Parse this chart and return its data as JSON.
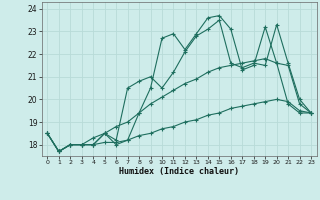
{
  "xlabel": "Humidex (Indice chaleur)",
  "bg_color": "#ceecea",
  "line_color": "#1e6e5e",
  "grid_color": "#b8dbd8",
  "xlim": [
    -0.5,
    23.5
  ],
  "ylim": [
    17.5,
    24.3
  ],
  "yticks": [
    18,
    19,
    20,
    21,
    22,
    23,
    24
  ],
  "xticks": [
    0,
    1,
    2,
    3,
    4,
    5,
    6,
    7,
    8,
    9,
    10,
    11,
    12,
    13,
    14,
    15,
    16,
    17,
    18,
    19,
    20,
    21,
    22,
    23
  ],
  "series": [
    {
      "x": [
        0,
        1,
        2,
        3,
        4,
        5,
        6,
        7,
        8,
        9,
        10,
        11,
        12,
        13,
        14,
        15,
        16,
        17,
        18,
        19,
        20,
        21,
        22,
        23
      ],
      "y": [
        18.5,
        17.7,
        18.0,
        18.0,
        18.0,
        18.5,
        18.0,
        18.2,
        19.4,
        20.5,
        22.7,
        22.9,
        22.2,
        22.9,
        23.6,
        23.7,
        23.1,
        21.3,
        21.5,
        23.2,
        21.6,
        19.8,
        19.4,
        19.4
      ]
    },
    {
      "x": [
        0,
        1,
        2,
        3,
        4,
        5,
        6,
        7,
        8,
        9,
        10,
        11,
        12,
        13,
        14,
        15,
        16,
        17,
        18,
        19,
        20,
        21,
        22,
        23
      ],
      "y": [
        18.5,
        17.7,
        18.0,
        18.0,
        18.0,
        18.5,
        18.2,
        20.5,
        20.8,
        21.0,
        20.5,
        21.2,
        22.1,
        22.8,
        23.1,
        23.5,
        21.6,
        21.4,
        21.6,
        21.5,
        23.3,
        21.6,
        20.0,
        19.4
      ]
    },
    {
      "x": [
        0,
        1,
        2,
        3,
        4,
        5,
        6,
        7,
        8,
        9,
        10,
        11,
        12,
        13,
        14,
        15,
        16,
        17,
        18,
        19,
        20,
        21,
        22,
        23
      ],
      "y": [
        18.5,
        17.7,
        18.0,
        18.0,
        18.3,
        18.5,
        18.8,
        19.0,
        19.4,
        19.8,
        20.1,
        20.4,
        20.7,
        20.9,
        21.2,
        21.4,
        21.5,
        21.6,
        21.7,
        21.8,
        21.6,
        21.5,
        19.8,
        19.4
      ]
    },
    {
      "x": [
        0,
        1,
        2,
        3,
        4,
        5,
        6,
        7,
        8,
        9,
        10,
        11,
        12,
        13,
        14,
        15,
        16,
        17,
        18,
        19,
        20,
        21,
        22,
        23
      ],
      "y": [
        18.5,
        17.7,
        18.0,
        18.0,
        18.0,
        18.1,
        18.1,
        18.2,
        18.4,
        18.5,
        18.7,
        18.8,
        19.0,
        19.1,
        19.3,
        19.4,
        19.6,
        19.7,
        19.8,
        19.9,
        20.0,
        19.9,
        19.5,
        19.4
      ]
    }
  ]
}
